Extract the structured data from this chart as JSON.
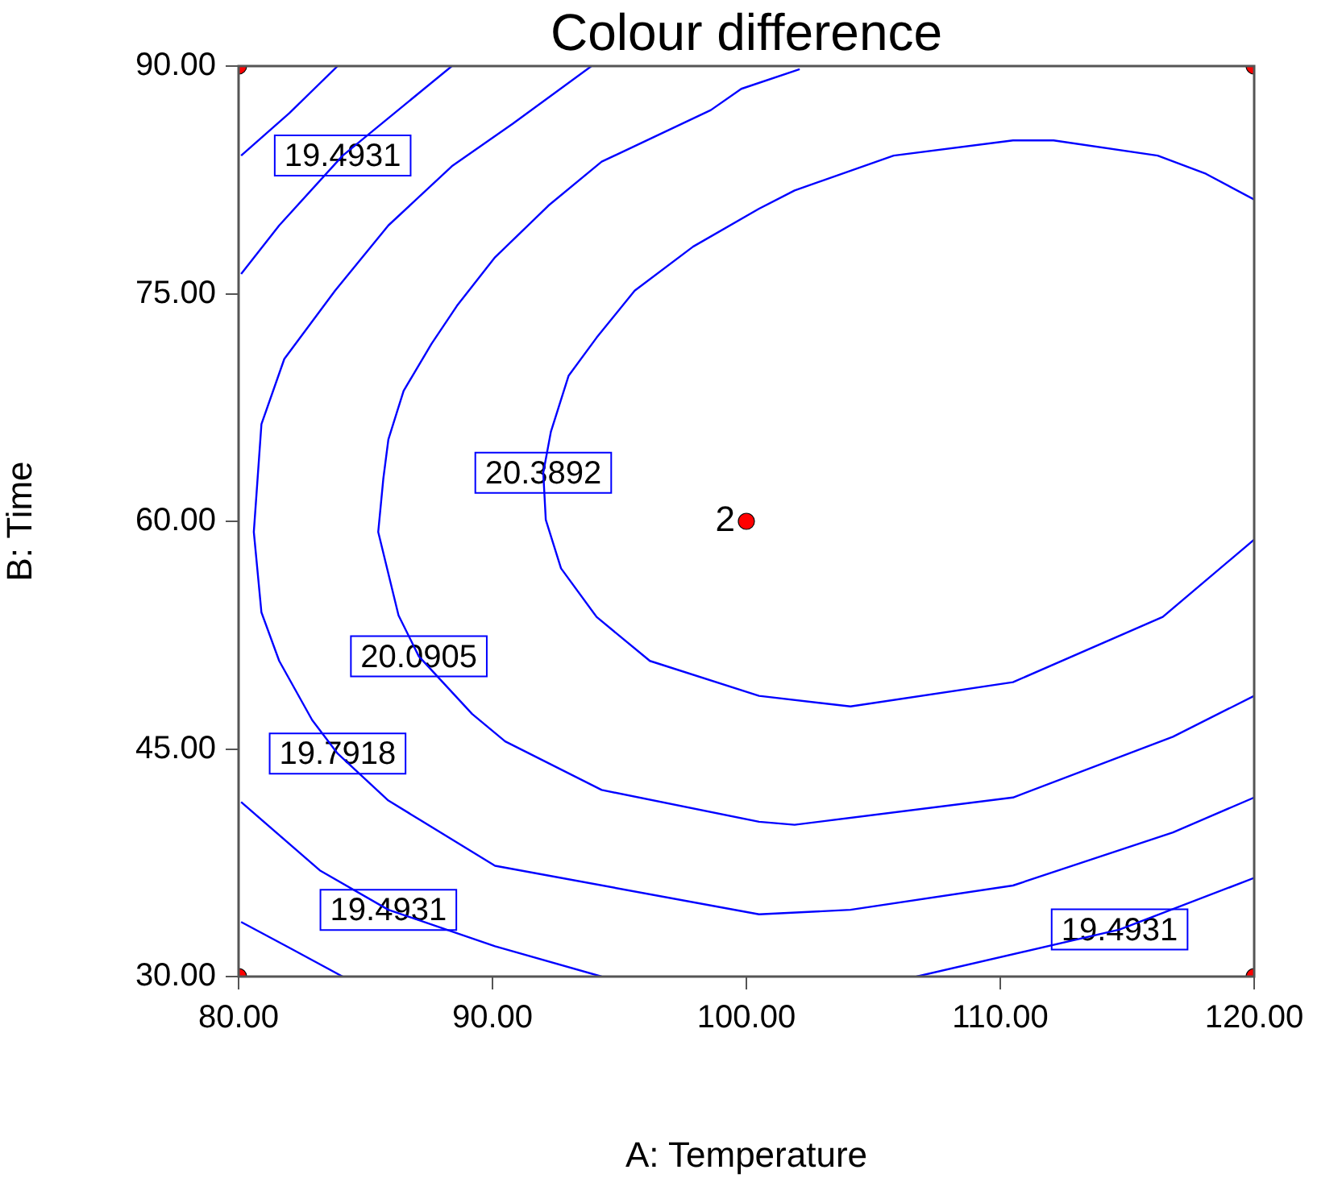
{
  "chart_data": {
    "type": "line",
    "title": "Colour difference",
    "xlabel": "A: Temperature",
    "ylabel": "B: Time",
    "xlim": [
      80,
      120
    ],
    "xticks": [
      {
        "value": 80,
        "label": "80.00"
      },
      {
        "value": 90,
        "label": "90.00"
      },
      {
        "value": 100,
        "label": "100.00"
      },
      {
        "value": 110,
        "label": "110.00"
      },
      {
        "value": 120,
        "label": "120.00"
      }
    ],
    "ylim": [
      30,
      90
    ],
    "yticks": [
      {
        "value": 30,
        "label": "30.00"
      },
      {
        "value": 45,
        "label": "45.00"
      },
      {
        "value": 60,
        "label": "60.00"
      },
      {
        "value": 75,
        "label": "75.00"
      },
      {
        "value": 90,
        "label": "90.00"
      }
    ],
    "grid": false,
    "legend": false,
    "line_style": "solid",
    "series": [
      {
        "color": "#0000ff",
        "marker": "none",
        "x": [
          120,
          118.1,
          116.2,
          112.1,
          110.5,
          105.8,
          101.9,
          100.5,
          97.9,
          95.6,
          94.1,
          93.0,
          92.3,
          92.0,
          92.1,
          92.7,
          94.1,
          96.2,
          100.5,
          104.1,
          110.5,
          116.4,
          120
        ],
        "values": [
          81.2,
          82.9,
          84.1,
          85.1,
          85.1,
          84.1,
          81.8,
          80.6,
          78.1,
          75.2,
          72.1,
          69.6,
          65.9,
          63.2,
          60.1,
          56.9,
          53.7,
          50.8,
          48.5,
          47.8,
          49.4,
          53.7,
          58.8
        ]
      },
      {
        "color": "#0000ff",
        "marker": "none",
        "x": [
          102.1,
          99.8,
          98.6,
          94.3,
          92.2,
          90.1,
          88.6,
          87.6,
          86.5,
          85.9,
          85.7,
          85.5,
          86.3,
          87.1,
          89.2,
          90.5,
          94.3,
          100.5,
          101.9,
          110.5,
          116.8,
          120
        ],
        "values": [
          89.8,
          88.5,
          87.1,
          83.7,
          80.8,
          77.4,
          74.2,
          71.7,
          68.6,
          65.4,
          62.8,
          59.3,
          53.8,
          51.1,
          47.3,
          45.5,
          42.3,
          40.2,
          40.0,
          41.8,
          45.8,
          48.5
        ]
      },
      {
        "color": "#0000ff",
        "marker": "none",
        "x": [
          93.9,
          90.8,
          88.4,
          85.9,
          83.8,
          81.8,
          80.9,
          80.6,
          80.9,
          81.6,
          82.9,
          83.9,
          85.9,
          90.1,
          100.5,
          104.1,
          110.5,
          116.8,
          120
        ],
        "values": [
          90,
          86.2,
          83.4,
          79.5,
          75.2,
          70.7,
          66.4,
          59.3,
          54.0,
          50.8,
          46.9,
          44.7,
          41.6,
          37.3,
          34.1,
          34.4,
          36.0,
          39.5,
          41.8
        ]
      },
      {
        "color": "#0000ff",
        "marker": "none",
        "x": [
          80.1,
          81.6,
          84.1,
          88.4
        ],
        "values": [
          76.3,
          79.5,
          84.1,
          90
        ]
      },
      {
        "color": "#0000ff",
        "marker": "none",
        "x": [
          80.1,
          83.2,
          85.9,
          90.1,
          94.3
        ],
        "values": [
          41.5,
          37.0,
          34.4,
          32.0,
          30
        ]
      },
      {
        "color": "#0000ff",
        "marker": "none",
        "x": [
          106.7,
          114.7,
          120
        ],
        "values": [
          30,
          33.1,
          36.5
        ]
      },
      {
        "color": "#0000ff",
        "marker": "none",
        "x": [
          80.1,
          82.0,
          83.9
        ],
        "values": [
          84.1,
          86.9,
          90
        ]
      },
      {
        "color": "#0000ff",
        "marker": "none",
        "x": [
          80.1,
          82.0,
          84.1
        ],
        "values": [
          33.6,
          31.9,
          30
        ]
      },
      {
        "type": "scatter",
        "color": "#ff0000",
        "marker": "circle",
        "x": [
          80,
          120,
          80,
          120,
          100
        ],
        "values": [
          90,
          90,
          30,
          30,
          60
        ]
      }
    ],
    "annotations": [
      {
        "text": "19.4931",
        "x": 84.1,
        "y": 84.1
      },
      {
        "text": "20.3892",
        "x": 92.0,
        "y": 63.2
      },
      {
        "text": "20.0905",
        "x": 87.1,
        "y": 51.1
      },
      {
        "text": "19.7918",
        "x": 83.9,
        "y": 44.7
      },
      {
        "text": "19.4931",
        "x": 85.9,
        "y": 34.4
      },
      {
        "text": "19.4931",
        "x": 114.7,
        "y": 33.1
      },
      {
        "text": "2",
        "x": 100,
        "y": 60
      }
    ]
  }
}
